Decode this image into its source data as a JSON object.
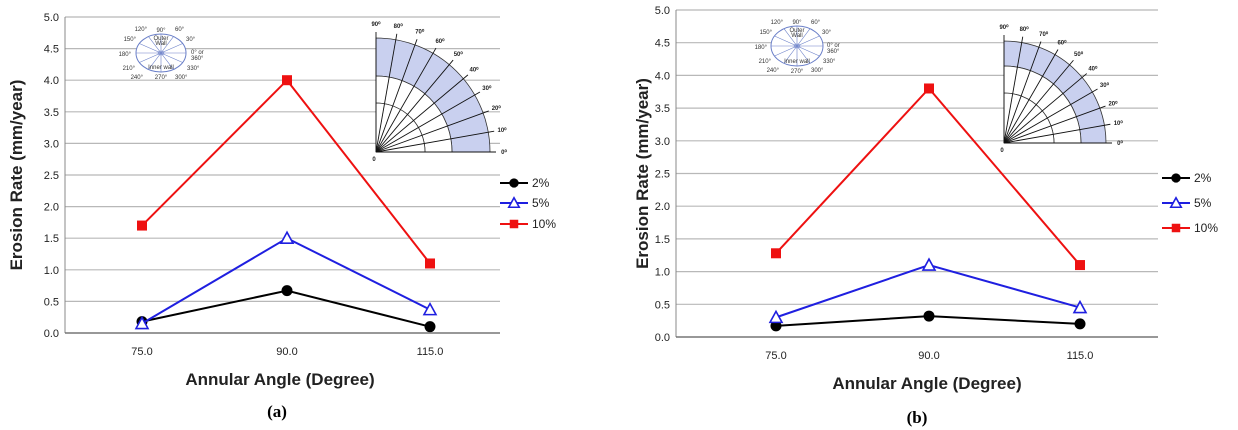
{
  "chart_data": [
    {
      "type": "line",
      "caption": "(a)",
      "xlabel": "Annular Angle (Degree)",
      "ylabel": "Erosion Rate (mm/year)",
      "categories": [
        "75.0",
        "90.0",
        "115.0"
      ],
      "ylim": [
        0,
        5
      ],
      "yticks": [
        "0.0",
        "0.5",
        "1.0",
        "1.5",
        "2.0",
        "2.5",
        "3.0",
        "3.5",
        "4.0",
        "4.5",
        "5.0"
      ],
      "grid": true,
      "legend_position": "right",
      "series": [
        {
          "name": "2%",
          "values": [
            0.18,
            0.67,
            0.1
          ],
          "color": "#000000",
          "marker": "circle"
        },
        {
          "name": "5%",
          "values": [
            0.15,
            1.5,
            0.37
          ],
          "color": "#1f1fe0",
          "marker": "triangle"
        },
        {
          "name": "10%",
          "values": [
            1.7,
            4.0,
            1.1
          ],
          "color": "#ee1111",
          "marker": "square"
        }
      ]
    },
    {
      "type": "line",
      "caption": "(b)",
      "xlabel": "Annular Angle (Degree)",
      "ylabel": "Erosion Rate (mm/year)",
      "categories": [
        "75.0",
        "90.0",
        "115.0"
      ],
      "ylim": [
        0,
        5
      ],
      "yticks": [
        "0.0",
        "0.5",
        "1.0",
        "1.5",
        "2.0",
        "2.5",
        "3.0",
        "3.5",
        "4.0",
        "4.5",
        "5.0"
      ],
      "grid": true,
      "legend_position": "right",
      "series": [
        {
          "name": "2%",
          "values": [
            0.17,
            0.32,
            0.2
          ],
          "color": "#000000",
          "marker": "circle"
        },
        {
          "name": "5%",
          "values": [
            0.3,
            1.1,
            0.45
          ],
          "color": "#1f1fe0",
          "marker": "triangle"
        },
        {
          "name": "10%",
          "values": [
            1.28,
            3.8,
            1.1
          ],
          "color": "#ee1111",
          "marker": "square"
        }
      ]
    }
  ],
  "inset_pipe": {
    "top_label": "90°",
    "left_labels": [
      "120°",
      "150°",
      "180°",
      "210°",
      "240°"
    ],
    "right_labels": [
      "60°",
      "30°",
      "0° or",
      "360°",
      "330°",
      "300°"
    ],
    "bottom_label": "270°",
    "inner_top": "Outer",
    "inner_top2": "Wall",
    "inner_bottom": "Inner wall"
  },
  "inset_quadrant": {
    "angles": [
      "0⁰",
      "10⁰",
      "20⁰",
      "30⁰",
      "40⁰",
      "50⁰",
      "60⁰",
      "70⁰",
      "80⁰",
      "90⁰"
    ],
    "origin_label": "0"
  }
}
